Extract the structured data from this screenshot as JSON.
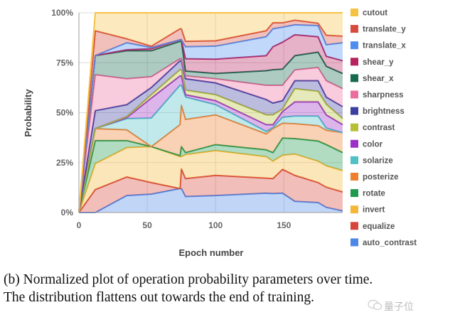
{
  "chart_data": {
    "type": "area",
    "stacked": true,
    "values_are_cumulative_percent": true,
    "title": "",
    "xlabel": "Epoch number",
    "ylabel": "Probability",
    "xlim": [
      0,
      193
    ],
    "ylim": [
      0,
      100
    ],
    "x_ticks": [
      "0",
      "50",
      "100",
      "150"
    ],
    "x_tick_values": [
      0,
      50,
      100,
      150
    ],
    "y_ticks": [
      "0%",
      "25%",
      "50%",
      "75%",
      "100%"
    ],
    "y_tick_values": [
      0,
      25,
      50,
      75,
      100
    ],
    "grid": true,
    "legend_position": "right",
    "x": [
      0,
      12,
      35,
      53,
      74,
      75,
      78,
      100,
      137,
      142,
      149,
      158,
      175,
      181,
      193
    ],
    "series": [
      {
        "name": "auto_contrast",
        "color": "#4d87e8",
        "values": [
          0,
          0,
          8.5,
          9.2,
          12,
          12,
          8,
          8.5,
          9.7,
          9.5,
          9.7,
          5.6,
          5,
          2.6,
          0.8
        ]
      },
      {
        "name": "equalize",
        "color": "#d6463a",
        "values": [
          0,
          11.5,
          17.8,
          15,
          12,
          21.8,
          17,
          18.6,
          17.2,
          17,
          21.6,
          18.6,
          15,
          12.7,
          10.3
        ]
      },
      {
        "name": "invert",
        "color": "#f4b73a",
        "values": [
          0,
          24.5,
          32.5,
          33,
          28,
          28,
          29,
          31,
          28,
          25.7,
          28.7,
          29.3,
          25.7,
          23.4,
          21
        ]
      },
      {
        "name": "rotate",
        "color": "#1f9a4f",
        "values": [
          0,
          36,
          36,
          33,
          28.5,
          33,
          30,
          34,
          31.4,
          30,
          37.3,
          37,
          35.8,
          34,
          30
        ]
      },
      {
        "name": "posterize",
        "color": "#ee7f2e",
        "values": [
          0,
          42,
          41.4,
          33,
          44,
          53.7,
          46.6,
          48.9,
          39.4,
          42,
          44.7,
          44.5,
          43.5,
          41.2,
          40
        ]
      },
      {
        "name": "solarize",
        "color": "#4ec0c6",
        "values": [
          0,
          42,
          47,
          47.3,
          63.7,
          63.7,
          57.8,
          54,
          40.6,
          42.5,
          47.7,
          48.3,
          48.3,
          42.3,
          40
        ]
      },
      {
        "name": "color",
        "color": "#9b2fc6",
        "values": [
          0,
          42,
          47.5,
          57.3,
          68.4,
          68.4,
          59,
          56,
          44,
          44,
          50.6,
          55.4,
          55.4,
          48.9,
          44
        ]
      },
      {
        "name": "contrast",
        "color": "#b7bf37",
        "values": [
          0,
          42,
          48,
          59,
          71.5,
          71.5,
          61.3,
          59,
          48.9,
          48.9,
          51.8,
          62,
          60.7,
          54.2,
          47
        ]
      },
      {
        "name": "brightness",
        "color": "#3c3fa0",
        "values": [
          0,
          51,
          54,
          62.6,
          76,
          76,
          67,
          64.9,
          56.6,
          54.8,
          56,
          66,
          66,
          57.8,
          53
        ]
      },
      {
        "name": "sharpness",
        "color": "#ea6d9e",
        "values": [
          0,
          69,
          67,
          68,
          77,
          77,
          68.4,
          67,
          63.7,
          63.7,
          63.7,
          71.4,
          72.6,
          66,
          62
        ]
      },
      {
        "name": "shear_x",
        "color": "#17694f",
        "values": [
          0,
          78.6,
          81,
          81,
          85.7,
          85.7,
          70.8,
          69.6,
          71,
          71.5,
          71.8,
          78.5,
          80.3,
          73.2,
          69.6
        ]
      },
      {
        "name": "shear_y",
        "color": "#b7215e",
        "values": [
          0,
          78.6,
          81.5,
          82,
          86.5,
          86.5,
          77,
          76.8,
          78.5,
          83,
          85.3,
          89,
          88,
          78.2,
          76
        ]
      },
      {
        "name": "translate_x",
        "color": "#4f8ef0",
        "values": [
          0,
          78.6,
          85,
          82.6,
          86.5,
          86.5,
          83,
          83.3,
          88,
          92,
          92.8,
          94,
          93.6,
          84,
          85
        ]
      },
      {
        "name": "translate_y",
        "color": "#d64b3b",
        "values": [
          0,
          91,
          87,
          83.3,
          92,
          92,
          85.7,
          86,
          91,
          95,
          95,
          96.3,
          94.8,
          88.8,
          88.3
        ]
      },
      {
        "name": "cutout",
        "color": "#f6c244",
        "values": [
          0,
          100,
          100,
          100,
          100,
          100,
          100,
          100,
          100,
          100,
          100,
          100,
          100,
          100,
          100
        ]
      }
    ]
  },
  "caption": {
    "line1": "(b) Normalized plot of operation probability parameters over time.",
    "line2": "The distribution flattens out towards the end of training."
  },
  "watermark": "量子位"
}
